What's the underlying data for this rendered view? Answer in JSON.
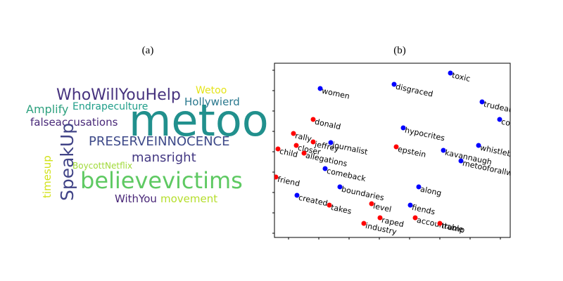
{
  "panels": [
    {
      "label": "(a)",
      "words": [
        {
          "text": "metoo",
          "color": "#21908d"
        },
        {
          "text": "WhoWillYouHelp",
          "color": "#46327e"
        },
        {
          "text": "Wetoo",
          "color": "#e5e419"
        },
        {
          "text": "Hollywierd",
          "color": "#2a788e"
        },
        {
          "text": "Amplify",
          "color": "#2ea17f"
        },
        {
          "text": "Endrapeculture",
          "color": "#1f9e89"
        },
        {
          "text": "falseaccusations",
          "color": "#482878"
        },
        {
          "text": "PRESERVEINNOCENCE",
          "color": "#3e4a89"
        },
        {
          "text": "SpeakUp",
          "color": "#414487"
        },
        {
          "text": "mansright",
          "color": "#443983"
        },
        {
          "text": "timesup",
          "color": "#d2e21b"
        },
        {
          "text": "BoycottNetflix",
          "color": "#a0da39"
        },
        {
          "text": "believevictims",
          "color": "#5ec962"
        },
        {
          "text": "WithYou",
          "color": "#482677"
        },
        {
          "text": "movement",
          "color": "#b5de2b"
        }
      ]
    },
    {
      "label": "(b)",
      "points": [
        {
          "text": "toxic",
          "color": "blue"
        },
        {
          "text": "women",
          "color": "blue"
        },
        {
          "text": "disgraced",
          "color": "blue"
        },
        {
          "text": "trudeaumust",
          "color": "blue"
        },
        {
          "text": "concerns",
          "color": "blue"
        },
        {
          "text": "hypocrites",
          "color": "blue"
        },
        {
          "text": "donald",
          "color": "red"
        },
        {
          "text": "rally",
          "color": "red"
        },
        {
          "text": "jeffrey",
          "color": "red"
        },
        {
          "text": "closer",
          "color": "red"
        },
        {
          "text": "journalist",
          "color": "blue"
        },
        {
          "text": "epstein",
          "color": "red"
        },
        {
          "text": "whistleblowing",
          "color": "blue"
        },
        {
          "text": "kavannaugh",
          "color": "blue"
        },
        {
          "text": "child",
          "color": "red"
        },
        {
          "text": "allegations",
          "color": "red"
        },
        {
          "text": "metooforallwomen",
          "color": "blue"
        },
        {
          "text": "comeback",
          "color": "blue"
        },
        {
          "text": "friend",
          "color": "red"
        },
        {
          "text": "boundaries",
          "color": "blue"
        },
        {
          "text": "along",
          "color": "blue"
        },
        {
          "text": "created",
          "color": "blue"
        },
        {
          "text": "takes",
          "color": "red"
        },
        {
          "text": "level",
          "color": "red"
        },
        {
          "text": "fiends",
          "color": "blue"
        },
        {
          "text": "raped",
          "color": "red"
        },
        {
          "text": "accountable",
          "color": "red"
        },
        {
          "text": "trump",
          "color": "red"
        },
        {
          "text": "industry",
          "color": "red"
        }
      ]
    }
  ]
}
